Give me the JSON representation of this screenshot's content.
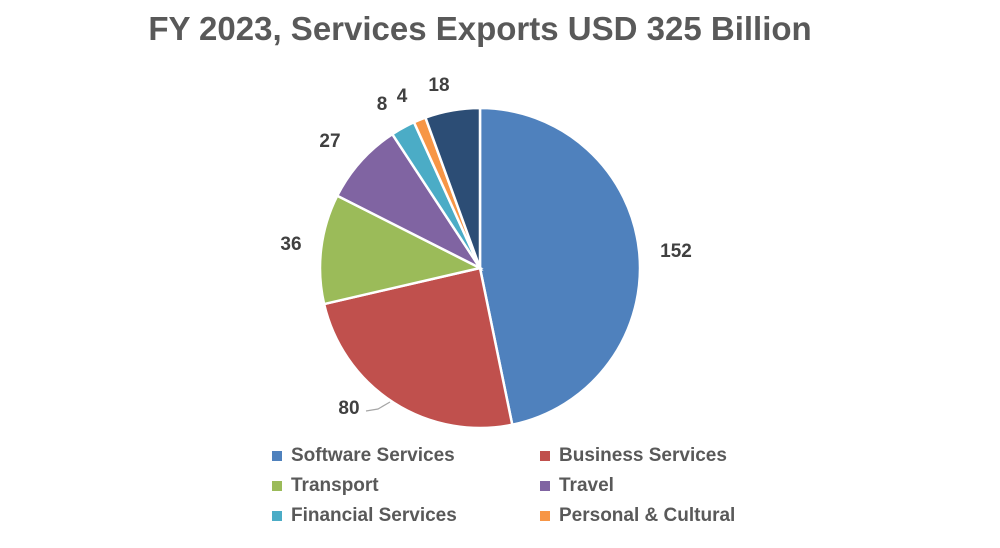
{
  "chart_data": {
    "type": "pie",
    "title": "FY 2023, Services Exports USD 325 Billion",
    "slices": [
      {
        "name": "Software Services",
        "value": 152,
        "label": "152",
        "color": "#4F81BD"
      },
      {
        "name": "Business Services",
        "value": 80,
        "label": "80",
        "color": "#C0504D"
      },
      {
        "name": "Transport",
        "value": 36,
        "label": "36",
        "color": "#9BBB59"
      },
      {
        "name": "Travel",
        "value": 27,
        "label": "27",
        "color": "#8064A2"
      },
      {
        "name": "Financial Services",
        "value": 8,
        "label": "8",
        "color": "#4BACC6"
      },
      {
        "name": "Personal  & Cultural",
        "value": 4,
        "label": "4",
        "color": "#F79646"
      },
      {
        "name": "",
        "value": 18,
        "label": "18",
        "color": "#2C4D75"
      }
    ],
    "legend": {
      "placement": "bottom",
      "items": [
        "Software Services",
        "Business Services",
        "Transport",
        "Travel",
        "Financial Services",
        "Personal  & Cultural"
      ]
    }
  }
}
